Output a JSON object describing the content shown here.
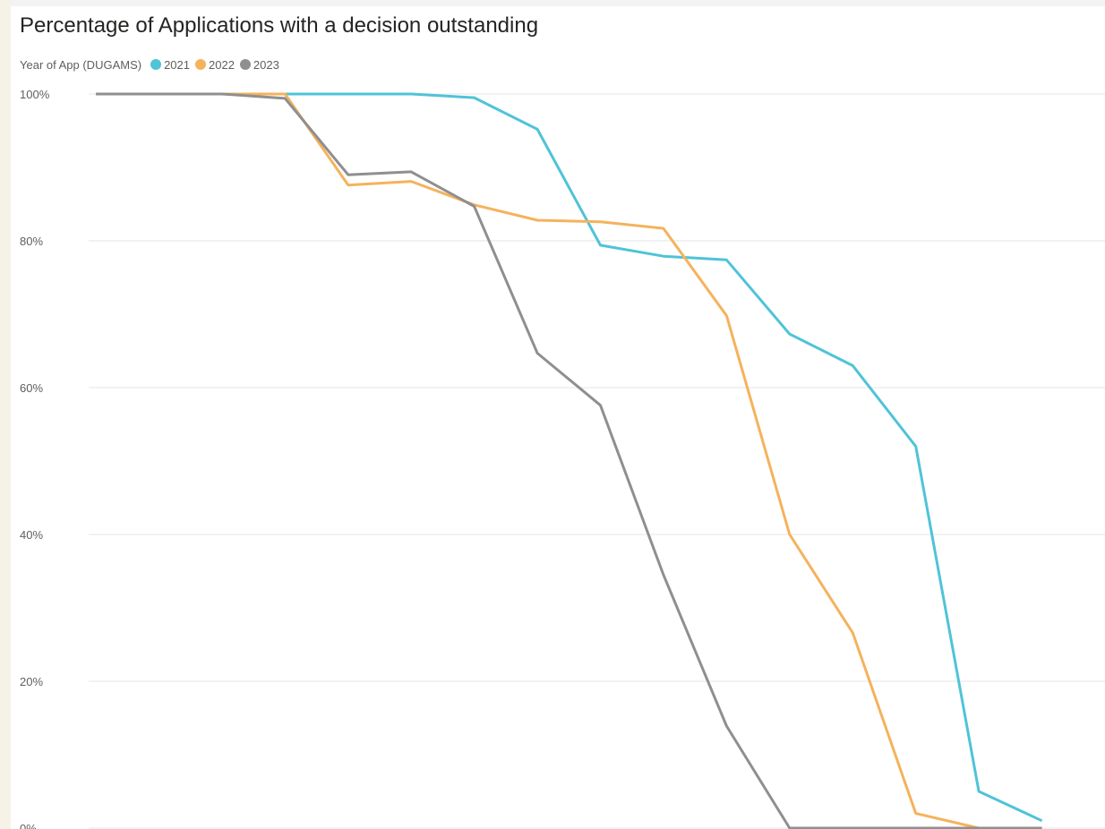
{
  "chart_data": {
    "type": "line",
    "title": "Percentage of Applications with a decision outstanding",
    "legend": {
      "title": "Year of App (DUGAMS)",
      "placement": "top-left"
    },
    "xlabel": "",
    "ylabel": "",
    "ylim": [
      0,
      100
    ],
    "yticks": [
      "0%",
      "20%",
      "40%",
      "60%",
      "80%",
      "100%"
    ],
    "grid": true,
    "x": [
      1,
      2,
      3,
      4,
      5,
      6,
      7,
      8,
      9,
      10,
      11,
      12,
      13,
      14,
      15,
      16,
      17
    ],
    "series": [
      {
        "name": "2021",
        "color": "#4fc3d8",
        "values": [
          100,
          100,
          100,
          100,
          100,
          100,
          99.5,
          95.2,
          79.4,
          77.9,
          77.4,
          67.3,
          63.0,
          52.0,
          5.0,
          1.0,
          null
        ]
      },
      {
        "name": "2022",
        "color": "#f5b25c",
        "values": [
          100,
          100,
          100,
          100,
          87.6,
          88.1,
          84.9,
          82.8,
          82.6,
          81.7,
          69.8,
          40.0,
          26.6,
          2.0,
          0,
          0,
          null
        ]
      },
      {
        "name": "2023",
        "color": "#8f8f8f",
        "values": [
          100,
          100,
          100,
          99.4,
          89.0,
          89.4,
          84.7,
          64.7,
          57.6,
          34.5,
          13.9,
          0,
          0,
          0,
          0,
          0,
          null
        ]
      }
    ]
  }
}
